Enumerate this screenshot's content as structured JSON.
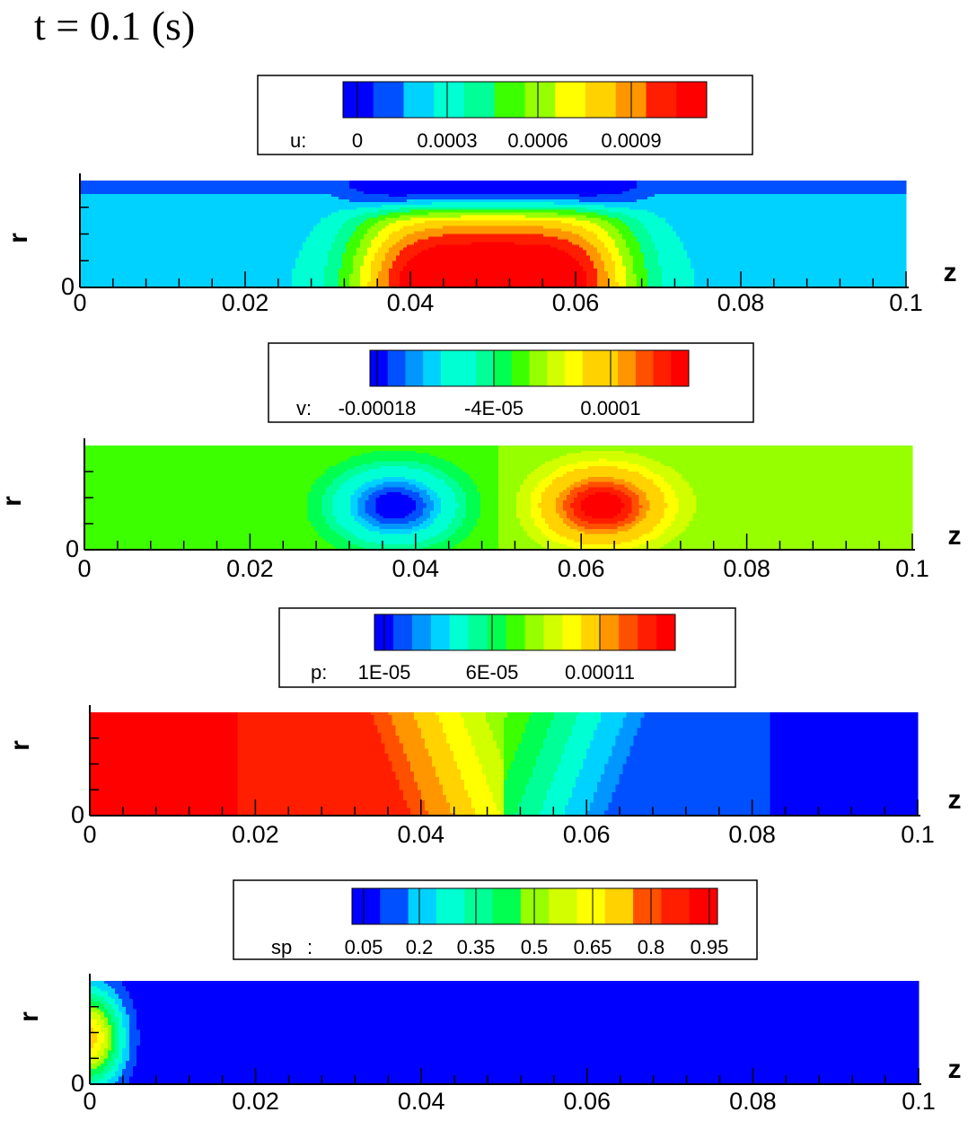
{
  "title": "t = 0.1 (s)",
  "palette": [
    "#0000ff",
    "#0050ff",
    "#0096ff",
    "#00d2ff",
    "#00ffd2",
    "#00ff96",
    "#00ff50",
    "#3cff00",
    "#96ff00",
    "#d2ff00",
    "#ffff00",
    "#ffd200",
    "#ff9600",
    "#ff5000",
    "#ff1e00",
    "#ff0000"
  ],
  "chart_data": [
    {
      "type": "heatmap",
      "field": "u",
      "legend": {
        "label": "u:",
        "levels": 12,
        "ticks": [
          "0",
          "0.0003",
          "0.0006",
          "0.0009"
        ],
        "tick_values": [
          0,
          0.0003,
          0.0006,
          0.0009
        ],
        "range": [
          -5e-05,
          0.0012
        ]
      },
      "xlabel": "z",
      "ylabel": "r",
      "x_ticks": [
        "0",
        "0.02",
        "0.04",
        "0.06",
        "0.08",
        "0.1"
      ],
      "y_ticks": [
        "0"
      ],
      "xlim": [
        0,
        0.1
      ],
      "pattern": "central-jet",
      "description_levels": {
        "wall": 0.0,
        "core_max": 0.00115,
        "jet_center": 0.05,
        "jet_half_width": 0.014
      }
    },
    {
      "type": "heatmap",
      "field": "v",
      "legend": {
        "label": "v:",
        "levels": 18,
        "ticks": [
          "-0.00018",
          "-4E-05",
          "0.0001"
        ],
        "tick_values": [
          -0.00018,
          -4e-05,
          0.0001
        ],
        "range": [
          -0.00022,
          0.00022
        ]
      },
      "xlabel": "z",
      "ylabel": "r",
      "x_ticks": [
        "0",
        "0.02",
        "0.04",
        "0.06",
        "0.08",
        "0.1"
      ],
      "y_ticks": [
        "0"
      ],
      "xlim": [
        0,
        0.1
      ],
      "pattern": "dipole",
      "description_levels": {
        "min_at_z": 0.0375,
        "max_at_z": 0.0625,
        "extreme": 0.00021
      }
    },
    {
      "type": "heatmap",
      "field": "p",
      "legend": {
        "label": "p:",
        "levels": 16,
        "ticks": [
          "1E-05",
          "6E-05",
          "0.00011"
        ],
        "tick_values": [
          1e-05,
          6e-05,
          0.00011
        ],
        "range": [
          0.0,
          0.00013
        ]
      },
      "xlabel": "z",
      "ylabel": "r",
      "x_ticks": [
        "0",
        "0.02",
        "0.04",
        "0.06",
        "0.08",
        "0.1"
      ],
      "y_ticks": [
        "0"
      ],
      "xlim": [
        0,
        0.1
      ],
      "pattern": "axial-drop",
      "description_levels": {
        "inlet": 0.00013,
        "outlet": 0.0,
        "drop_start": 0.034,
        "drop_end": 0.067
      }
    },
    {
      "type": "heatmap",
      "field": "sp",
      "legend": {
        "label": "sp",
        "label_suffix": ":",
        "levels": 13,
        "ticks": [
          "0.05",
          "0.2",
          "0.35",
          "0.5",
          "0.65",
          "0.8",
          "0.95"
        ],
        "tick_values": [
          0.05,
          0.2,
          0.35,
          0.5,
          0.65,
          0.8,
          0.95
        ],
        "range": [
          0.0,
          1.0
        ]
      },
      "xlabel": "z",
      "ylabel": "r",
      "x_ticks": [
        "0",
        "0.02",
        "0.04",
        "0.06",
        "0.08",
        "0.1"
      ],
      "y_ticks": [
        "0"
      ],
      "xlim": [
        0,
        0.1
      ],
      "pattern": "inlet-blob",
      "description_levels": {
        "peak": 0.72,
        "peak_z": 0.0,
        "decay_z": 0.005
      }
    }
  ]
}
